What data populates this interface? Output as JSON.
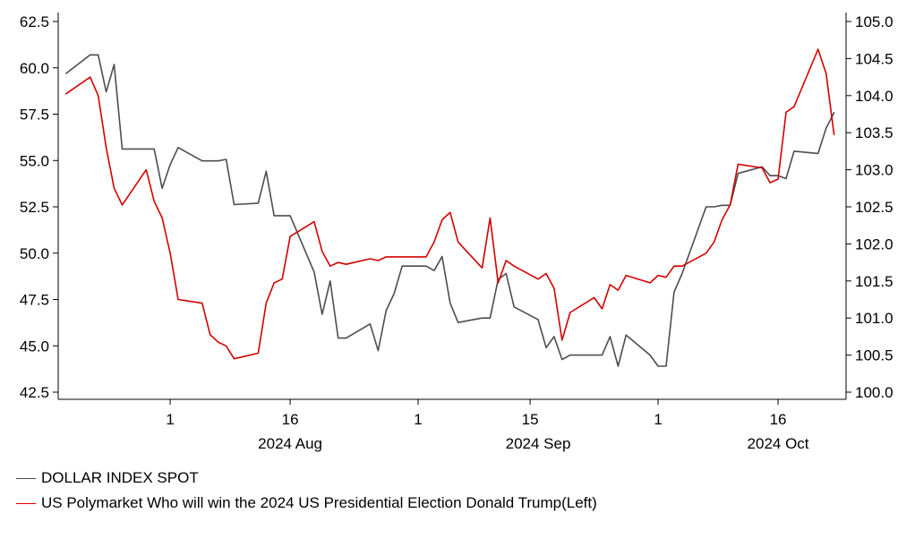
{
  "chart_data": {
    "type": "line",
    "x_tick_labels": [
      "1",
      "16",
      "1",
      "15",
      "1",
      "16"
    ],
    "x_month_labels": [
      "2024 Aug",
      "2024 Sep",
      "2024 Oct"
    ],
    "y_left": {
      "ticks": [
        "42.5",
        "45.0",
        "47.5",
        "50.0",
        "52.5",
        "55.0",
        "57.5",
        "60.0",
        "62.5"
      ],
      "range": [
        42.5,
        62.5
      ]
    },
    "y_right": {
      "ticks": [
        "100.0",
        "100.5",
        "101.0",
        "101.5",
        "102.0",
        "102.5",
        "103.0",
        "103.5",
        "104.0",
        "104.5",
        "105.0"
      ],
      "range": [
        100.0,
        105.0
      ]
    },
    "grid": false,
    "legend_position": "bottom-left",
    "series": [
      {
        "name": "DOLLAR INDEX SPOT",
        "axis": "right",
        "color": "#4d4d4d",
        "x": [
          "2024-07-19",
          "2024-07-22",
          "2024-07-23",
          "2024-07-24",
          "2024-07-25",
          "2024-07-26",
          "2024-07-29",
          "2024-07-30",
          "2024-07-31",
          "2024-08-01",
          "2024-08-02",
          "2024-08-05",
          "2024-08-06",
          "2024-08-07",
          "2024-08-08",
          "2024-08-09",
          "2024-08-12",
          "2024-08-13",
          "2024-08-14",
          "2024-08-15",
          "2024-08-16",
          "2024-08-19",
          "2024-08-20",
          "2024-08-21",
          "2024-08-22",
          "2024-08-23",
          "2024-08-26",
          "2024-08-27",
          "2024-08-28",
          "2024-08-29",
          "2024-08-30",
          "2024-09-02",
          "2024-09-03",
          "2024-09-04",
          "2024-09-05",
          "2024-09-06",
          "2024-09-09",
          "2024-09-10",
          "2024-09-11",
          "2024-09-12",
          "2024-09-13",
          "2024-09-16",
          "2024-09-17",
          "2024-09-18",
          "2024-09-19",
          "2024-09-20",
          "2024-09-23",
          "2024-09-24",
          "2024-09-25",
          "2024-09-26",
          "2024-09-27",
          "2024-09-30",
          "2024-10-01",
          "2024-10-02",
          "2024-10-03",
          "2024-10-04",
          "2024-10-07",
          "2024-10-08",
          "2024-10-09",
          "2024-10-10",
          "2024-10-11",
          "2024-10-14",
          "2024-10-15",
          "2024-10-16",
          "2024-10-17",
          "2024-10-18",
          "2024-10-21",
          "2024-10-22",
          "2024-10-23"
        ],
        "values": [
          104.3,
          104.55,
          104.55,
          104.05,
          104.42,
          103.28,
          103.28,
          103.28,
          102.75,
          103.07,
          103.3,
          103.12,
          103.12,
          103.12,
          103.14,
          102.53,
          102.55,
          102.98,
          102.38,
          102.38,
          102.38,
          101.62,
          101.05,
          101.5,
          100.73,
          100.73,
          100.92,
          100.56,
          101.1,
          101.33,
          101.7,
          101.7,
          101.64,
          101.83,
          101.2,
          100.94,
          101.0,
          101.0,
          101.52,
          101.6,
          101.15,
          100.98,
          100.6,
          100.75,
          100.44,
          100.5,
          100.5,
          100.5,
          100.75,
          100.35,
          100.77,
          100.5,
          100.35,
          100.35,
          101.35,
          101.6,
          102.5,
          102.5,
          102.52,
          102.52,
          102.95,
          103.04,
          102.92,
          102.92,
          102.88,
          103.25,
          103.22,
          103.56,
          103.77
        ]
      },
      {
        "name": "US Polymarket Who will win the 2024 US Presidential Election Donald Trump(Left)",
        "axis": "left",
        "color": "#d40000",
        "x": [
          "2024-07-19",
          "2024-07-22",
          "2024-07-23",
          "2024-07-24",
          "2024-07-25",
          "2024-07-26",
          "2024-07-29",
          "2024-07-30",
          "2024-07-31",
          "2024-08-01",
          "2024-08-02",
          "2024-08-05",
          "2024-08-06",
          "2024-08-07",
          "2024-08-08",
          "2024-08-09",
          "2024-08-12",
          "2024-08-13",
          "2024-08-14",
          "2024-08-15",
          "2024-08-16",
          "2024-08-19",
          "2024-08-20",
          "2024-08-21",
          "2024-08-22",
          "2024-08-23",
          "2024-08-26",
          "2024-08-27",
          "2024-08-28",
          "2024-08-29",
          "2024-08-30",
          "2024-09-02",
          "2024-09-03",
          "2024-09-04",
          "2024-09-05",
          "2024-09-06",
          "2024-09-09",
          "2024-09-10",
          "2024-09-11",
          "2024-09-12",
          "2024-09-13",
          "2024-09-16",
          "2024-09-17",
          "2024-09-18",
          "2024-09-19",
          "2024-09-20",
          "2024-09-23",
          "2024-09-24",
          "2024-09-25",
          "2024-09-26",
          "2024-09-27",
          "2024-09-30",
          "2024-10-01",
          "2024-10-02",
          "2024-10-03",
          "2024-10-04",
          "2024-10-07",
          "2024-10-08",
          "2024-10-09",
          "2024-10-10",
          "2024-10-11",
          "2024-10-14",
          "2024-10-15",
          "2024-10-16",
          "2024-10-17",
          "2024-10-18",
          "2024-10-21",
          "2024-10-22",
          "2024-10-23"
        ],
        "values": [
          58.6,
          59.5,
          58.5,
          55.7,
          53.5,
          52.6,
          54.5,
          52.8,
          51.9,
          50.0,
          47.5,
          47.3,
          45.6,
          45.2,
          45.0,
          44.3,
          44.6,
          47.3,
          48.4,
          48.6,
          50.9,
          51.7,
          50.1,
          49.3,
          49.5,
          49.4,
          49.7,
          49.6,
          49.8,
          49.8,
          49.8,
          49.8,
          50.6,
          51.8,
          52.2,
          50.6,
          49.2,
          51.9,
          48.4,
          49.6,
          49.3,
          48.6,
          48.9,
          48.1,
          45.3,
          46.8,
          47.6,
          47.0,
          48.3,
          48.0,
          48.8,
          48.4,
          48.8,
          48.7,
          49.3,
          49.3,
          50.0,
          50.6,
          51.8,
          52.6,
          54.8,
          54.6,
          53.8,
          54.0,
          57.6,
          57.9,
          61.0,
          59.7,
          56.4
        ]
      }
    ]
  }
}
